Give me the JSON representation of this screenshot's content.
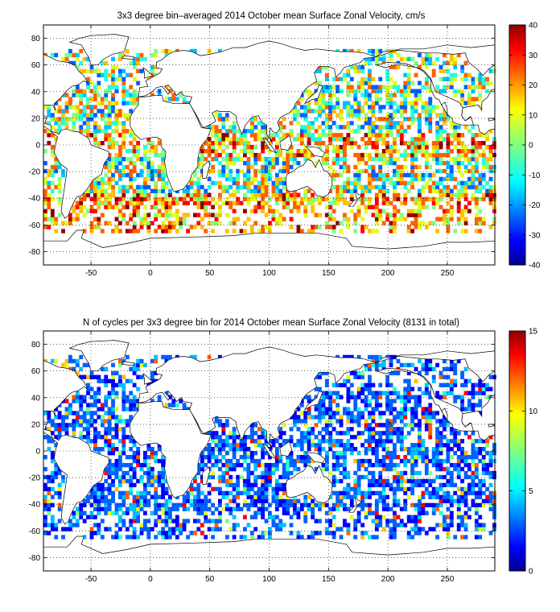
{
  "palette": [
    "#00008f",
    "#0000ff",
    "#0060ff",
    "#00bfff",
    "#20ffdf",
    "#80ff80",
    "#dfff20",
    "#ffbf00",
    "#ff6000",
    "#ff0000",
    "#8f0000"
  ],
  "land_color": "#ffffff",
  "coast_color": "#000000",
  "chart_data": [
    {
      "type": "heatmap",
      "title": "3x3 degree bin–averaged 2014 October mean Surface Zonal Velocity, cm/s",
      "x_ticks": [
        "-50",
        "0",
        "50",
        "100",
        "150",
        "200",
        "250"
      ],
      "y_ticks": [
        "80",
        "60",
        "40",
        "20",
        "0",
        "-20",
        "-40",
        "-60",
        "-80"
      ],
      "xlim": [
        -90,
        290
      ],
      "ylim": [
        -90,
        90
      ],
      "grid": true,
      "bin_size_deg": 3,
      "colorbar": {
        "ticks": [
          "40",
          "30",
          "20",
          "10",
          "0",
          "-10",
          "-20",
          "-30",
          "-40"
        ],
        "range": [
          -40,
          40
        ]
      }
    },
    {
      "type": "heatmap",
      "title": "N of cycles per 3x3 degree bin for 2014 October mean Surface Zonal Velocity (8131 in total)",
      "x_ticks": [
        "-50",
        "0",
        "50",
        "100",
        "150",
        "200",
        "250"
      ],
      "y_ticks": [
        "80",
        "60",
        "40",
        "20",
        "0",
        "-20",
        "-40",
        "-60",
        "-80"
      ],
      "xlim": [
        -90,
        290
      ],
      "ylim": [
        -90,
        90
      ],
      "grid": true,
      "bin_size_deg": 3,
      "colorbar": {
        "ticks": [
          "15",
          "10",
          "5",
          "0"
        ],
        "range": [
          0,
          15
        ]
      }
    }
  ]
}
